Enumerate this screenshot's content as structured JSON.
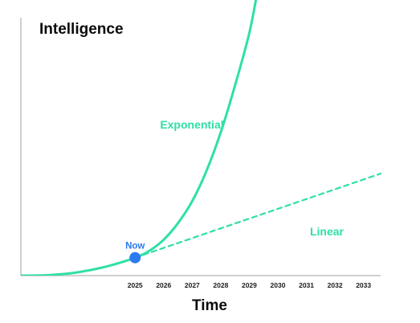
{
  "chart_data": {
    "type": "line",
    "ylabel": "Intelligence",
    "xlabel": "Time",
    "x_ticks": [
      "2025",
      "2026",
      "2027",
      "2028",
      "2029",
      "2030",
      "2031",
      "2032",
      "2033"
    ],
    "xlim": [
      2021,
      2033.6
    ],
    "ylim": [
      0,
      1
    ],
    "grid": false,
    "series": [
      {
        "name": "Exponential",
        "style": "solid",
        "color": "#2fe0a5",
        "points": [
          [
            2021,
            0.0
          ],
          [
            2022,
            0.002
          ],
          [
            2023,
            0.012
          ],
          [
            2024,
            0.033
          ],
          [
            2025,
            0.065
          ],
          [
            2025.5,
            0.09
          ],
          [
            2026,
            0.13
          ],
          [
            2026.5,
            0.19
          ],
          [
            2027,
            0.27
          ],
          [
            2027.5,
            0.38
          ],
          [
            2028,
            0.52
          ],
          [
            2028.5,
            0.69
          ],
          [
            2029,
            0.88
          ],
          [
            2029.3,
            1.04
          ]
        ]
      },
      {
        "name": "Linear",
        "style": "dashed",
        "color": "#2fe0a5",
        "points": [
          [
            2025,
            0.065
          ],
          [
            2033.6,
            0.37
          ]
        ]
      }
    ],
    "marker": {
      "label": "Now",
      "x": 2025,
      "y": 0.065,
      "color": "#2b7bf0"
    }
  }
}
